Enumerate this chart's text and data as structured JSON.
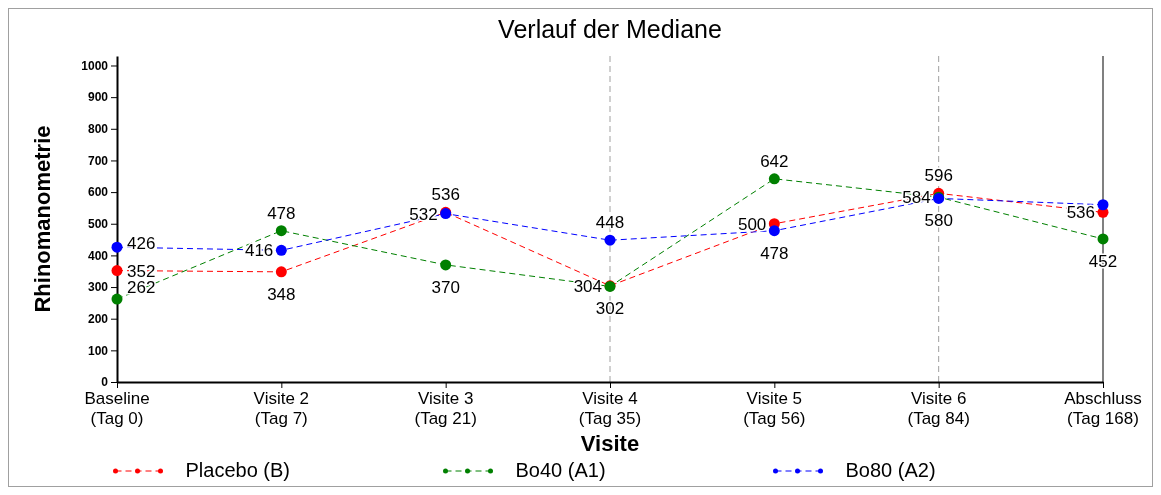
{
  "chart_data": {
    "type": "line",
    "title": "Verlauf der Mediane",
    "xlabel": "Visite",
    "ylabel": "Rhinomanometrie",
    "categories": [
      "Baseline\n(Tag 0)",
      "Visite 2\n(Tag 7)",
      "Visite 3\n(Tag 21)",
      "Visite 4\n(Tag 35)",
      "Visite 5\n(Tag 56)",
      "Visite 6\n(Tag 84)",
      "Abschluss\n(Tag 168)"
    ],
    "series": [
      {
        "name": "Placebo (B)",
        "color": "#ff0000",
        "values": [
          352,
          348,
          536,
          304,
          500,
          596,
          536
        ],
        "value_labels": [
          "352",
          "348",
          "536",
          "304",
          "500",
          "596",
          "536"
        ]
      },
      {
        "name": "Bo40 (A1)",
        "color": "#008000",
        "values": [
          262,
          478,
          370,
          302,
          642,
          584,
          452
        ],
        "value_labels": [
          "262",
          "478",
          "370",
          "302",
          "642",
          "584",
          "452"
        ]
      },
      {
        "name": "Bo80 (A2)",
        "color": "#0000ff",
        "values": [
          426,
          416,
          532,
          448,
          478,
          580,
          560
        ],
        "value_labels": [
          "426",
          "416",
          "532",
          "448",
          "478",
          "580",
          null
        ]
      }
    ],
    "ylim": [
      0,
      1030
    ],
    "yticks": [
      0,
      100,
      200,
      300,
      400,
      500,
      600,
      700,
      800,
      900,
      1000
    ],
    "ref_lines": [
      {
        "axis": "x",
        "value": "Visite 4\n(Tag 35)",
        "color": "#a0a0a0",
        "line_style": "dashed"
      },
      {
        "axis": "x",
        "value": "Visite 6\n(Tag 84)",
        "color": "#a0a0a0",
        "line_style": "dashed"
      }
    ],
    "legend": "bottom",
    "marker": "circle",
    "line_style": "dashed"
  }
}
